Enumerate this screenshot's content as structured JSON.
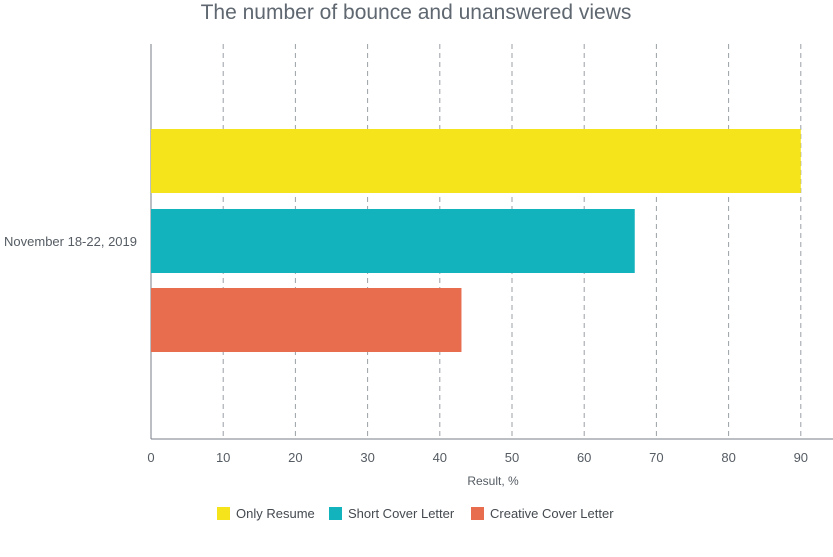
{
  "chart_data": {
    "type": "bar",
    "orientation": "horizontal",
    "title": "The number of bounce and unanswered views",
    "categories": [
      "November 18-22, 2019"
    ],
    "series": [
      {
        "name": "Only Resume",
        "values": [
          90
        ],
        "color": "#f5e41c"
      },
      {
        "name": "Short Cover Letter",
        "values": [
          67
        ],
        "color": "#12b3bd"
      },
      {
        "name": "Creative Cover Letter",
        "values": [
          43
        ],
        "color": "#e86c4e"
      }
    ],
    "xlabel": "Result, %",
    "ylabel": "",
    "xlim": [
      0,
      95
    ],
    "xticks": [
      "0",
      "10",
      "20",
      "30",
      "40",
      "50",
      "60",
      "70",
      "80",
      "90"
    ],
    "grid": true,
    "legend_position": "bottom"
  }
}
